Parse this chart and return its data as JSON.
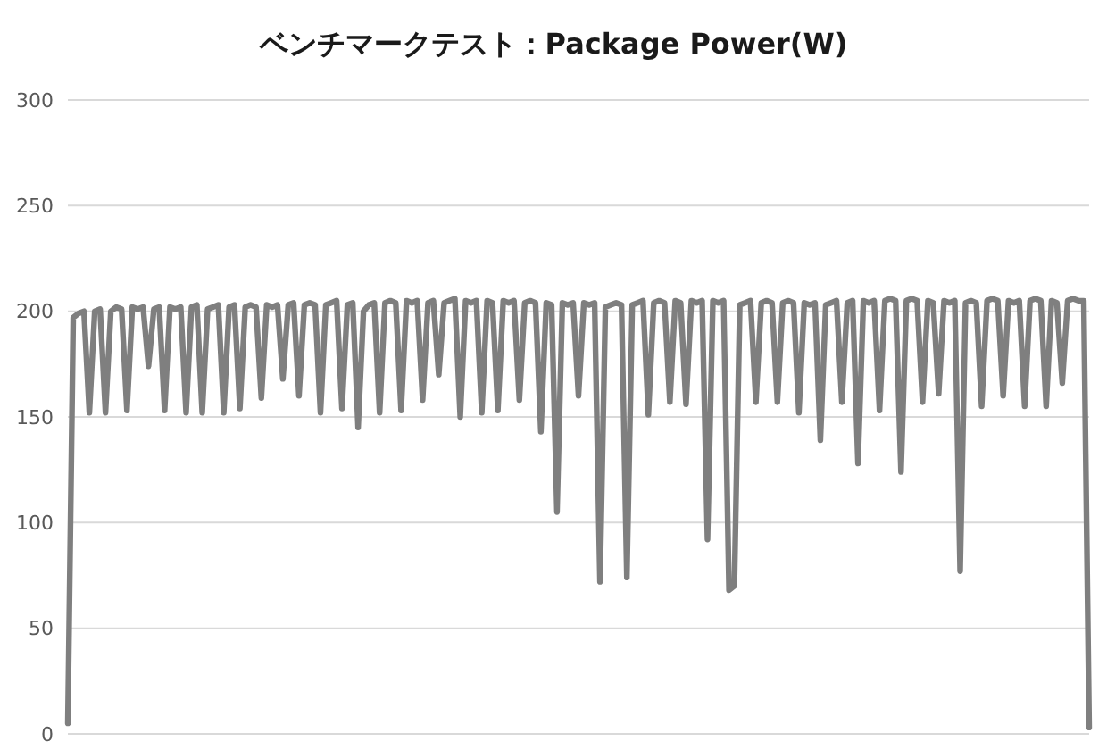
{
  "chart_data": {
    "type": "line",
    "title": "ベンチマークテスト：Package Power(W)",
    "categories": [
      null,
      null,
      null,
      null,
      null,
      null,
      null,
      null,
      null,
      null,
      null,
      null,
      null,
      null,
      null,
      null,
      null,
      null,
      null,
      null,
      null,
      null,
      null,
      null,
      null,
      null,
      null,
      null,
      null,
      null,
      null,
      null,
      null,
      null,
      null,
      null,
      null,
      null,
      null,
      null,
      null,
      null,
      null,
      null,
      null,
      null,
      null,
      null,
      null,
      null,
      null,
      null,
      null,
      null,
      null,
      null,
      null,
      null,
      null,
      null,
      null,
      null,
      null,
      null,
      null,
      null,
      null,
      null,
      null,
      null,
      null,
      null,
      null,
      null,
      null,
      null,
      null,
      null,
      null,
      null,
      null,
      null,
      null,
      null,
      null,
      null,
      null,
      null,
      null,
      null,
      null,
      null,
      null,
      null,
      null,
      null,
      null,
      null,
      null,
      null,
      null,
      null,
      null,
      null,
      null,
      null,
      null,
      null,
      null,
      null,
      null,
      null,
      null,
      null,
      null,
      null,
      null,
      null,
      null,
      null,
      null,
      null,
      null,
      null,
      null,
      null,
      null,
      null,
      null,
      null,
      null,
      null,
      null,
      null,
      null,
      null,
      null,
      null,
      null,
      null,
      null,
      null,
      null,
      null,
      null,
      null,
      null,
      null,
      null,
      null,
      null,
      null,
      null,
      null,
      null,
      null,
      null,
      null,
      null,
      null,
      null,
      null,
      null,
      null,
      null,
      null,
      null,
      null,
      null,
      null,
      null,
      null,
      null,
      null,
      null,
      null,
      null,
      null,
      null,
      null,
      null,
      null,
      null,
      null,
      null,
      null,
      null,
      null,
      null,
      null,
      null
    ],
    "series": [
      {
        "color": "#7f7f7f",
        "values": [
          5,
          197,
          199,
          200,
          152,
          200,
          201,
          152,
          200,
          202,
          201,
          153,
          202,
          201,
          202,
          174,
          201,
          202,
          153,
          202,
          201,
          202,
          152,
          202,
          203,
          152,
          201,
          202,
          203,
          152,
          202,
          203,
          154,
          202,
          203,
          202,
          159,
          203,
          202,
          203,
          168,
          203,
          204,
          160,
          203,
          204,
          203,
          152,
          203,
          204,
          205,
          154,
          203,
          204,
          145,
          200,
          203,
          204,
          152,
          204,
          205,
          204,
          153,
          205,
          204,
          205,
          158,
          204,
          205,
          170,
          204,
          205,
          206,
          150,
          205,
          204,
          205,
          152,
          205,
          204,
          153,
          205,
          204,
          205,
          158,
          204,
          205,
          204,
          143,
          204,
          203,
          105,
          204,
          203,
          204,
          160,
          204,
          203,
          204,
          72,
          202,
          203,
          204,
          203,
          74,
          203,
          204,
          205,
          151,
          204,
          205,
          204,
          157,
          205,
          204,
          156,
          205,
          204,
          205,
          92,
          205,
          204,
          205,
          68,
          70,
          203,
          204,
          205,
          157,
          204,
          205,
          204,
          157,
          204,
          205,
          204,
          152,
          204,
          203,
          204,
          139,
          203,
          204,
          205,
          157,
          204,
          205,
          128,
          205,
          204,
          205,
          153,
          205,
          206,
          205,
          124,
          205,
          206,
          205,
          157,
          205,
          204,
          161,
          205,
          204,
          205,
          77,
          204,
          205,
          204,
          155,
          205,
          206,
          205,
          160,
          205,
          204,
          205,
          155,
          205,
          206,
          205,
          155,
          205,
          204,
          166,
          205,
          206,
          205,
          205,
          3
        ]
      }
    ],
    "ylim": [
      0,
      300
    ],
    "yticks": [
      0,
      50,
      100,
      150,
      200,
      250,
      300
    ],
    "grid": "y",
    "tick_labels": "y",
    "marker": "none",
    "line_style": "solid"
  }
}
